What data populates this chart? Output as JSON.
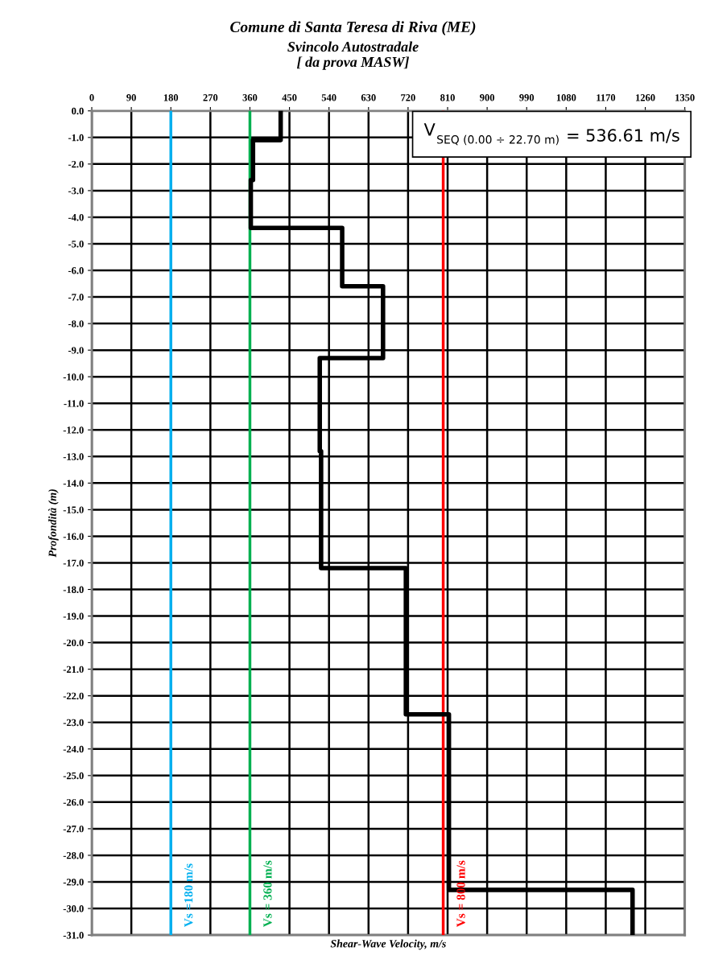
{
  "chart_data": {
    "type": "line",
    "title": "Comune di Santa Teresa di Riva (ME)",
    "subtitle": "Svincolo Autostradale\n[ da prova MASW]",
    "xlabel": "Shear-Wave Velocity, m/s",
    "ylabel": "Profondità (m)",
    "series": [
      {
        "color": "#000000",
        "x": [
          430,
          430,
          367,
          367,
          362,
          362,
          570,
          570,
          663,
          663,
          519,
          519,
          522,
          522,
          715,
          715,
          813,
          813,
          1231,
          1231
        ],
        "values": [
          0,
          -1.1,
          -1.1,
          -2.6,
          -2.6,
          -4.4,
          -4.4,
          -6.6,
          -6.6,
          -9.3,
          -9.3,
          -12.8,
          -12.8,
          -17.2,
          -17.2,
          -22.7,
          -22.7,
          -29.3,
          -29.3,
          -31
        ]
      }
    ],
    "xlim": [
      0,
      1350
    ],
    "xticks": [
      0,
      90,
      180,
      270,
      360,
      450,
      540,
      630,
      720,
      810,
      900,
      990,
      1080,
      1170,
      1260,
      1350
    ],
    "ylim": [
      -31,
      0
    ],
    "yticks": [
      {
        "value": 0,
        "label": "0.0"
      },
      {
        "value": -1,
        "label": "-1.0"
      },
      {
        "value": -2,
        "label": "-2.0"
      },
      {
        "value": -3,
        "label": "-3.0"
      },
      {
        "value": -4,
        "label": "-4.0"
      },
      {
        "value": -5,
        "label": "-5.0"
      },
      {
        "value": -6,
        "label": "-6.0"
      },
      {
        "value": -7,
        "label": "-7.0"
      },
      {
        "value": -8,
        "label": "-8.0"
      },
      {
        "value": -9,
        "label": "-9.0"
      },
      {
        "value": -10,
        "label": "-10.0"
      },
      {
        "value": -11,
        "label": "-11.0"
      },
      {
        "value": -12,
        "label": "-12.0"
      },
      {
        "value": -13,
        "label": "-13.0"
      },
      {
        "value": -14,
        "label": "-14.0"
      },
      {
        "value": -15,
        "label": "-15.0"
      },
      {
        "value": -16,
        "label": "-16.0"
      },
      {
        "value": -17,
        "label": "-17.0"
      },
      {
        "value": -18,
        "label": "-18.0"
      },
      {
        "value": -19,
        "label": "-19.0"
      },
      {
        "value": -20,
        "label": "-20.0"
      },
      {
        "value": -21,
        "label": "-21.0"
      },
      {
        "value": -22,
        "label": "-22.0"
      },
      {
        "value": -23,
        "label": "-23.0"
      },
      {
        "value": -24,
        "label": "-24.0"
      },
      {
        "value": -25,
        "label": "-25.0"
      },
      {
        "value": -26,
        "label": "-26.0"
      },
      {
        "value": -27,
        "label": "-27.0"
      },
      {
        "value": -28,
        "label": "-28.0"
      },
      {
        "value": -29,
        "label": "-29.0"
      },
      {
        "value": -30,
        "label": "-30.0"
      },
      {
        "value": -31,
        "label": "-31.0"
      }
    ],
    "ref_lines": [
      {
        "axis": "x",
        "value": 180,
        "label": "Vs =180 m/s",
        "color": "#00b0f0"
      },
      {
        "axis": "x",
        "value": 360,
        "label": "Vs = 360 m/s",
        "color": "#00b050"
      },
      {
        "axis": "x",
        "value": 800,
        "label": "Vs = 800 m/s",
        "color": "#ff0000"
      }
    ],
    "annotations": [
      "V$_{SEQ (0.00 ÷ 22.70 m)}$ = 536.61 m/s"
    ],
    "grid": true,
    "marker": "none",
    "line_style": "solid",
    "legend": false
  }
}
